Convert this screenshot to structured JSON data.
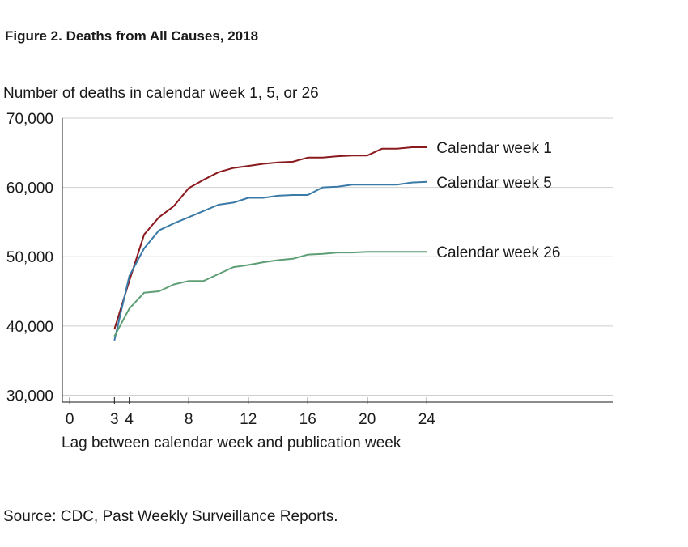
{
  "figure": {
    "title": "Figure 2. Deaths from All Causes, 2018",
    "source": "Source: CDC, Past Weekly Surveillance Reports."
  },
  "chart_data": {
    "type": "line",
    "title": "Figure 2. Deaths from All Causes, 2018",
    "ylabel": "Number of deaths in calendar week 1, 5, or 26",
    "xlabel": "Lag between calendar week and publication week",
    "xlim": [
      -0.5,
      36.5
    ],
    "ylim": [
      29000,
      70000
    ],
    "x_ticks": [
      0,
      3,
      4,
      8,
      12,
      16,
      20,
      24
    ],
    "y_ticks": [
      30000,
      40000,
      50000,
      60000,
      70000
    ],
    "y_tick_labels": [
      "30,000",
      "40,000",
      "50,000",
      "60,000",
      "70,000"
    ],
    "grid": "horizontal",
    "legend": "inline labels at line ends",
    "series": [
      {
        "name": "Calendar week 1",
        "color": "#8b1a1f",
        "x": [
          3,
          4,
          5,
          6,
          7,
          8,
          9,
          10,
          11,
          12,
          13,
          14,
          15,
          16,
          17,
          18,
          19,
          20,
          21,
          22,
          23,
          24
        ],
        "values": [
          39500,
          46500,
          53200,
          55700,
          57300,
          59900,
          61100,
          62200,
          62800,
          63100,
          63400,
          63600,
          63700,
          64300,
          64300,
          64500,
          64600,
          64600,
          65600,
          65600,
          65800,
          65800
        ]
      },
      {
        "name": "Calendar week 5",
        "color": "#3a7aa7",
        "x": [
          3,
          4,
          5,
          6,
          7,
          8,
          9,
          10,
          11,
          12,
          13,
          14,
          15,
          16,
          17,
          18,
          19,
          20,
          21,
          22,
          23,
          24
        ],
        "values": [
          37900,
          47200,
          51200,
          53800,
          54800,
          55700,
          56600,
          57500,
          57800,
          58500,
          58500,
          58800,
          58900,
          58900,
          60000,
          60100,
          60400,
          60400,
          60400,
          60400,
          60700,
          60800
        ]
      },
      {
        "name": "Calendar week 26",
        "color": "#5e9e74",
        "x": [
          3,
          4,
          5,
          6,
          7,
          8,
          9,
          10,
          11,
          12,
          13,
          14,
          15,
          16,
          17,
          18,
          19,
          20,
          21,
          22,
          23,
          24
        ],
        "values": [
          38500,
          42500,
          44800,
          45000,
          46000,
          46500,
          46500,
          47500,
          48500,
          48800,
          49200,
          49500,
          49700,
          50300,
          50400,
          50600,
          50600,
          50700,
          50700,
          50700,
          50700,
          50700
        ]
      }
    ]
  }
}
